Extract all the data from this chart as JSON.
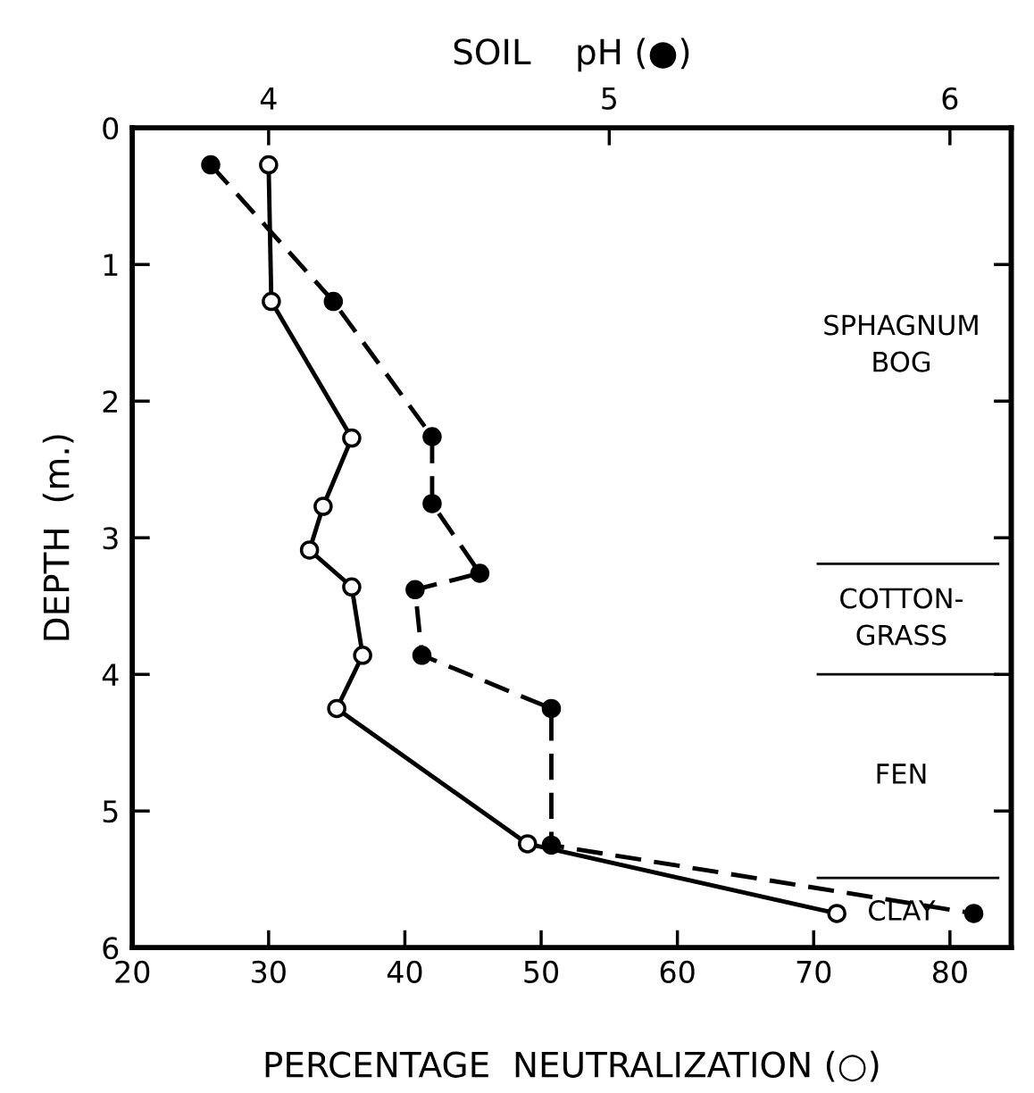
{
  "chart_data": {
    "type": "line",
    "xlabel": "PERCENTAGE  NEUTRALIZATION (○)",
    "x2label": "SOIL    pH (●)",
    "ylabel": "DEPTH  (m.)",
    "xlim": [
      20,
      84.5
    ],
    "xticks": [
      20,
      30,
      40,
      50,
      60,
      70,
      80
    ],
    "x2lim": [
      3.6,
      6.18
    ],
    "x2ticks": [
      4,
      5,
      6
    ],
    "ylim": [
      6,
      0
    ],
    "yticks": [
      0,
      1,
      2,
      3,
      4,
      5,
      6
    ],
    "marker": "circle",
    "grid": false,
    "legend": false,
    "series": [
      {
        "color": "#000000",
        "line_style": "solid",
        "x": [
          30,
          30.2,
          36.1,
          34.0,
          33.0,
          36.1,
          36.9,
          35.0,
          49.0,
          71.7
        ],
        "values": [
          0.27,
          1.27,
          2.27,
          2.77,
          3.09,
          3.36,
          3.86,
          4.25,
          5.24,
          5.75
        ]
      },
      {
        "color": "#000000",
        "line_style": "dashed",
        "axis": "x2",
        "x": [
          3.83,
          4.19,
          4.48,
          4.48,
          4.62,
          4.43,
          4.45,
          4.83,
          4.83,
          6.07
        ],
        "values": [
          0.27,
          1.27,
          2.26,
          2.75,
          3.26,
          3.38,
          3.86,
          4.25,
          5.25,
          5.75
        ]
      }
    ],
    "ref_lines": [
      {
        "axis": "y",
        "value": 3.19,
        "color": "#000000"
      },
      {
        "axis": "y",
        "value": 4.0,
        "color": "#000000"
      },
      {
        "axis": "y",
        "value": 5.49,
        "color": "#000000"
      }
    ],
    "annotations": [
      "SPHAGNUM\nBOG",
      "COTTON-\nGRASS",
      "FEN",
      "CLAY"
    ]
  }
}
